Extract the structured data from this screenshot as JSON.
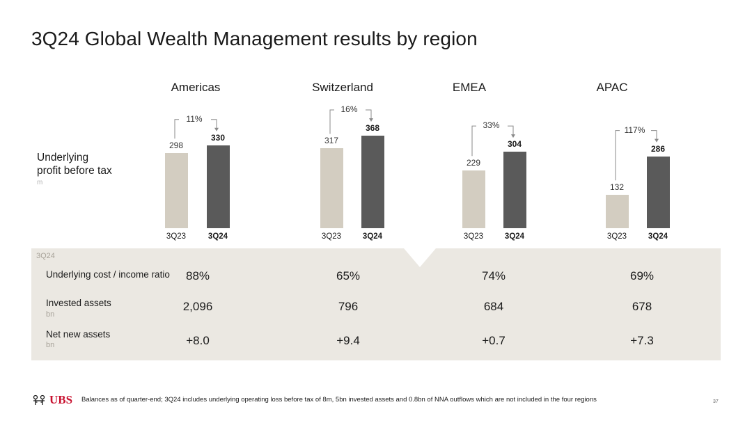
{
  "title": "3Q24 Global Wealth Management results by region",
  "metric": {
    "label_line1": "Underlying",
    "label_line2": "profit before tax",
    "unit": "m"
  },
  "regions": [
    {
      "name": "Americas",
      "prev_label": "3Q23",
      "cur_label": "3Q24",
      "prev_value": "298",
      "cur_value": "330",
      "change": "11%"
    },
    {
      "name": "Switzerland",
      "prev_label": "3Q23",
      "cur_label": "3Q24",
      "prev_value": "317",
      "cur_value": "368",
      "change": "16%"
    },
    {
      "name": "EMEA",
      "prev_label": "3Q23",
      "cur_label": "3Q24",
      "prev_value": "229",
      "cur_value": "304",
      "change": "33%"
    },
    {
      "name": "APAC",
      "prev_label": "3Q23",
      "cur_label": "3Q24",
      "prev_value": "132",
      "cur_value": "286",
      "change": "117%"
    }
  ],
  "chart_data": {
    "type": "bar",
    "title": "Underlying profit before tax",
    "ylabel": "m",
    "categories": [
      "Americas",
      "Switzerland",
      "EMEA",
      "APAC"
    ],
    "series": [
      {
        "name": "3Q23",
        "values": [
          298,
          317,
          229,
          132
        ]
      },
      {
        "name": "3Q24",
        "values": [
          330,
          368,
          304,
          286
        ]
      }
    ],
    "annotations": [
      "11%",
      "16%",
      "33%",
      "117%"
    ],
    "ylim": [
      0,
      368
    ]
  },
  "table": {
    "tag": "3Q24",
    "rows": [
      {
        "label": "Underlying cost / income ratio",
        "unit": "",
        "values": [
          "88%",
          "65%",
          "74%",
          "69%"
        ]
      },
      {
        "label": "Invested assets",
        "unit": "bn",
        "values": [
          "2,096",
          "796",
          "684",
          "678"
        ]
      },
      {
        "label": "Net new assets",
        "unit": "bn",
        "values": [
          "+8.0",
          "+9.4",
          "+0.7",
          "+7.3"
        ]
      }
    ]
  },
  "footer": {
    "logo": "UBS",
    "note": "Balances as of quarter-end; 3Q24 includes underlying operating loss before tax of 8m, 5bn invested assets and 0.8bn of NNA outflows which are not included in the four regions",
    "page": "37"
  },
  "colors": {
    "prev_bar": "#d3cdc1",
    "cur_bar": "#5a5a5a",
    "panel": "#ebe8e2",
    "brand": "#c8102e"
  }
}
